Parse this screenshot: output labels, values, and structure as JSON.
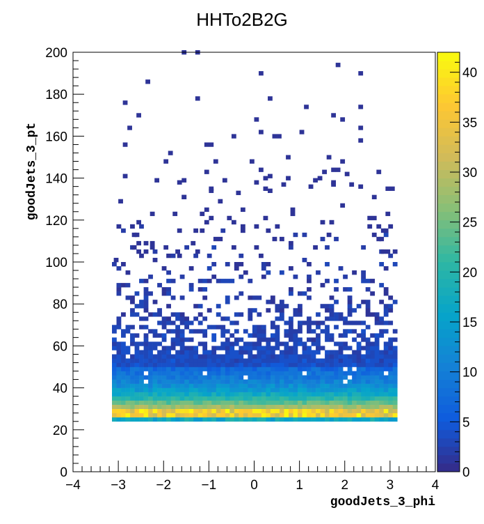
{
  "chart_data": {
    "type": "heatmap",
    "title": "HHTo2B2G",
    "xlabel": "goodJets_3_phi",
    "ylabel": "goodJets_3_pt",
    "xlim": [
      -4,
      4
    ],
    "ylim": [
      0,
      200
    ],
    "x_ticks": [
      "−4",
      "−3",
      "−2",
      "−1",
      "0",
      "1",
      "2",
      "3",
      "4"
    ],
    "y_ticks": [
      "0",
      "20",
      "40",
      "60",
      "80",
      "100",
      "120",
      "140",
      "160",
      "180",
      "200"
    ],
    "colorbar": {
      "range": [
        0,
        42
      ],
      "ticks": [
        "0",
        "5",
        "10",
        "15",
        "20",
        "25",
        "30",
        "35",
        "40"
      ],
      "palette": "kBird",
      "colors": [
        "#352a87",
        "#0f5cdd",
        "#1481d6",
        "#06a4ca",
        "#2eb7a4",
        "#87bf77",
        "#d1bb59",
        "#fec832",
        "#f9fb0e"
      ]
    },
    "data_description": "Filled region spans phi -3.14 to 3.14, pt 25 to 50 with counts decaying from ~40 near pt 27 to ~5 at pt 50; sparse entries extend up to pt 200.",
    "density_profile": {
      "phi_range": [
        -3.14,
        3.14
      ],
      "bin_width_phi": 0.1,
      "bin_width_pt": 2,
      "peak_pt": 27,
      "peak_count": 40,
      "dense_until_pt": 50
    },
    "sparse_points": [
      [
        -1.6,
        199
      ],
      [
        -1.3,
        199
      ],
      [
        0.1,
        189
      ],
      [
        1.8,
        193
      ],
      [
        2.3,
        189
      ],
      [
        -2.4,
        185
      ],
      [
        -1.3,
        177
      ],
      [
        0.3,
        177
      ],
      [
        -2.9,
        175
      ],
      [
        1.1,
        173
      ],
      [
        2.3,
        173
      ],
      [
        -2.6,
        169
      ],
      [
        1.7,
        169
      ],
      [
        0.0,
        167
      ],
      [
        1.9,
        167
      ],
      [
        2.3,
        163
      ],
      [
        -2.8,
        163
      ],
      [
        0.1,
        161
      ],
      [
        1.0,
        161
      ],
      [
        -0.5,
        159
      ],
      [
        0.4,
        159
      ],
      [
        0.5,
        159
      ],
      [
        -1.1,
        155
      ],
      [
        -1.0,
        155
      ],
      [
        -2.9,
        155
      ],
      [
        2.3,
        157
      ],
      [
        -1.9,
        151
      ],
      [
        0.7,
        149
      ],
      [
        1.6,
        149
      ],
      [
        -2.0,
        147
      ],
      [
        -0.9,
        147
      ],
      [
        -0.1,
        147
      ],
      [
        1.9,
        147
      ],
      [
        0.1,
        143
      ],
      [
        1.7,
        143
      ],
      [
        1.8,
        143
      ],
      [
        2.0,
        141
      ],
      [
        0.2,
        139
      ],
      [
        0.7,
        139
      ],
      [
        1.4,
        139
      ],
      [
        -1.7,
        137
      ],
      [
        0.0,
        137
      ],
      [
        1.2,
        135
      ],
      [
        1.7,
        137
      ],
      [
        2.3,
        135
      ],
      [
        -1.0,
        133
      ],
      [
        0.3,
        133
      ]
    ]
  }
}
